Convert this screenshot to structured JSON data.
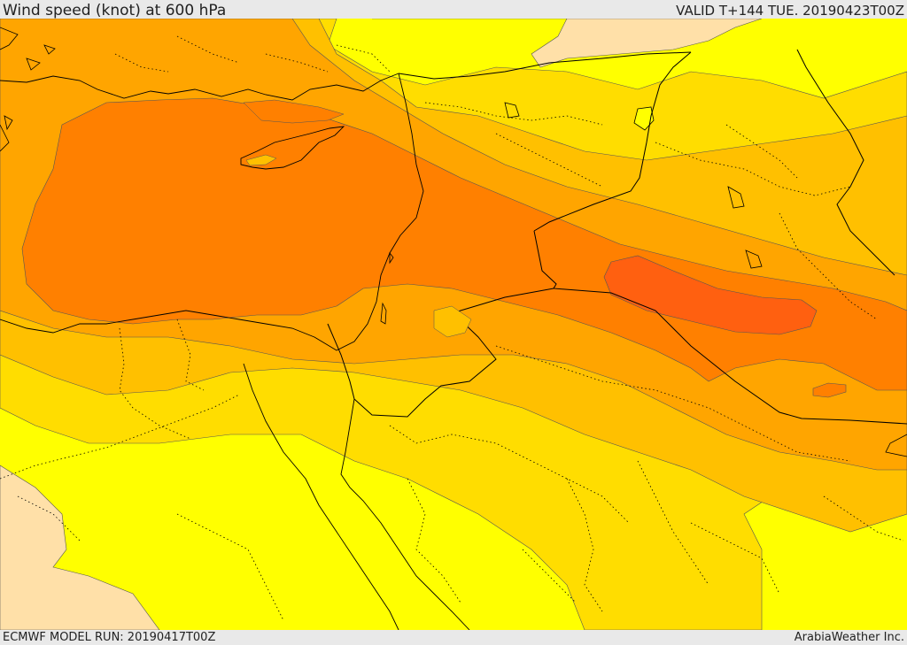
{
  "header": {
    "title": "Wind speed (knot) at 600 hPa",
    "valid": "VALID T+144 TUE. 20190423T00Z"
  },
  "footer": {
    "model_run": "ECMWF MODEL RUN: 20190417T00Z",
    "credit": "ArabiaWeather Inc."
  },
  "map": {
    "region": "Eastern Mediterranean / Levant",
    "colors": {
      "land_low": "#ffe0a8",
      "band_yellow": "#ffff00",
      "band_gold": "#ffdd00",
      "band_amber": "#ffc000",
      "band_orange": "#ffa500",
      "band_dark_orange": "#ff8000",
      "band_red_orange": "#ff6010",
      "coast_border": "#000000",
      "contour": "#555555"
    }
  }
}
